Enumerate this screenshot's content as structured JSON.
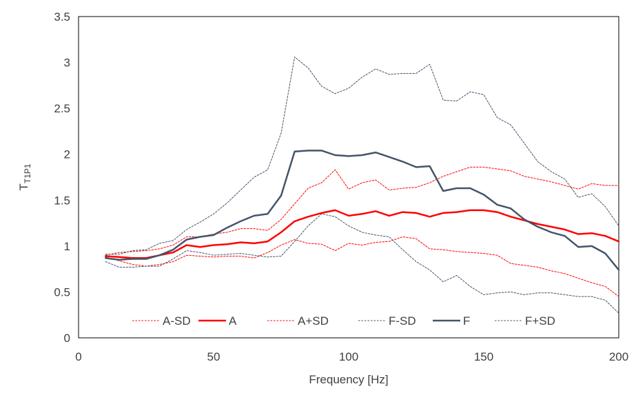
{
  "chart_data": {
    "type": "line",
    "xlabel": "Frequency [Hz]",
    "ylabel": "T",
    "ylabel_subscript": "T1P1",
    "xlim": [
      0,
      200
    ],
    "ylim": [
      0,
      3.5
    ],
    "x_ticks": [
      "0",
      "50",
      "100",
      "150",
      "200"
    ],
    "y_ticks": [
      "0",
      "0.5",
      "1",
      "1.5",
      "2",
      "2.5",
      "3",
      "3.5"
    ],
    "grid": false,
    "legend_position": "bottom-inside",
    "x": [
      10,
      15,
      20,
      25,
      30,
      35,
      40,
      45,
      50,
      55,
      60,
      65,
      70,
      75,
      80,
      85,
      90,
      95,
      100,
      105,
      110,
      115,
      120,
      125,
      130,
      135,
      140,
      145,
      150,
      155,
      160,
      165,
      170,
      175,
      180,
      185,
      190,
      195,
      200
    ],
    "series": [
      {
        "name": "A-SD",
        "color": "#ff0000",
        "dash": "dotted",
        "width": 1,
        "values": [
          0.88,
          0.84,
          0.8,
          0.78,
          0.8,
          0.83,
          0.9,
          0.89,
          0.88,
          0.89,
          0.89,
          0.87,
          0.93,
          1.01,
          1.07,
          1.03,
          1.02,
          0.95,
          1.03,
          1.01,
          1.04,
          1.05,
          1.1,
          1.08,
          0.97,
          0.96,
          0.94,
          0.93,
          0.92,
          0.9,
          0.81,
          0.79,
          0.77,
          0.73,
          0.7,
          0.65,
          0.6,
          0.56,
          0.45
        ]
      },
      {
        "name": "A",
        "color": "#ff0000",
        "dash": "solid",
        "width": 2.5,
        "values": [
          0.89,
          0.88,
          0.87,
          0.87,
          0.9,
          0.93,
          1.01,
          0.99,
          1.01,
          1.02,
          1.04,
          1.03,
          1.05,
          1.15,
          1.27,
          1.32,
          1.36,
          1.39,
          1.33,
          1.35,
          1.38,
          1.33,
          1.37,
          1.36,
          1.32,
          1.36,
          1.37,
          1.39,
          1.39,
          1.37,
          1.32,
          1.28,
          1.24,
          1.21,
          1.18,
          1.13,
          1.14,
          1.11,
          1.05
        ]
      },
      {
        "name": "A+SD",
        "color": "#ff0000",
        "dash": "dotted",
        "width": 1,
        "values": [
          0.9,
          0.93,
          0.94,
          0.95,
          0.97,
          1.01,
          1.1,
          1.1,
          1.13,
          1.15,
          1.19,
          1.19,
          1.17,
          1.29,
          1.46,
          1.63,
          1.69,
          1.83,
          1.62,
          1.69,
          1.72,
          1.61,
          1.63,
          1.64,
          1.69,
          1.76,
          1.81,
          1.86,
          1.86,
          1.84,
          1.82,
          1.76,
          1.73,
          1.7,
          1.66,
          1.62,
          1.68,
          1.66,
          1.66
        ]
      },
      {
        "name": "F-SD",
        "color": "#44546a",
        "dash": "dotted",
        "width": 1,
        "values": [
          0.83,
          0.77,
          0.77,
          0.78,
          0.78,
          0.86,
          0.95,
          0.93,
          0.9,
          0.91,
          0.92,
          0.9,
          0.88,
          0.89,
          1.05,
          1.22,
          1.35,
          1.32,
          1.22,
          1.15,
          1.12,
          1.1,
          0.96,
          0.83,
          0.74,
          0.61,
          0.68,
          0.56,
          0.47,
          0.49,
          0.5,
          0.47,
          0.49,
          0.49,
          0.47,
          0.45,
          0.45,
          0.41,
          0.27
        ]
      },
      {
        "name": "F",
        "color": "#44546a",
        "dash": "solid",
        "width": 2.5,
        "values": [
          0.87,
          0.85,
          0.86,
          0.86,
          0.9,
          0.96,
          1.07,
          1.1,
          1.12,
          1.2,
          1.27,
          1.33,
          1.35,
          1.55,
          2.03,
          2.04,
          2.04,
          1.99,
          1.98,
          1.99,
          2.02,
          1.97,
          1.92,
          1.86,
          1.87,
          1.6,
          1.63,
          1.63,
          1.56,
          1.45,
          1.41,
          1.29,
          1.21,
          1.15,
          1.11,
          0.99,
          1.0,
          0.92,
          0.74
        ]
      },
      {
        "name": "F+SD",
        "color": "#44546a",
        "dash": "dotted",
        "width": 1,
        "values": [
          0.91,
          0.91,
          0.95,
          0.96,
          1.03,
          1.06,
          1.18,
          1.26,
          1.35,
          1.47,
          1.61,
          1.75,
          1.83,
          2.23,
          3.06,
          2.94,
          2.74,
          2.66,
          2.72,
          2.84,
          2.93,
          2.87,
          2.88,
          2.88,
          2.98,
          2.59,
          2.58,
          2.68,
          2.65,
          2.4,
          2.32,
          2.12,
          1.92,
          1.81,
          1.73,
          1.53,
          1.57,
          1.43,
          1.22
        ]
      }
    ]
  }
}
